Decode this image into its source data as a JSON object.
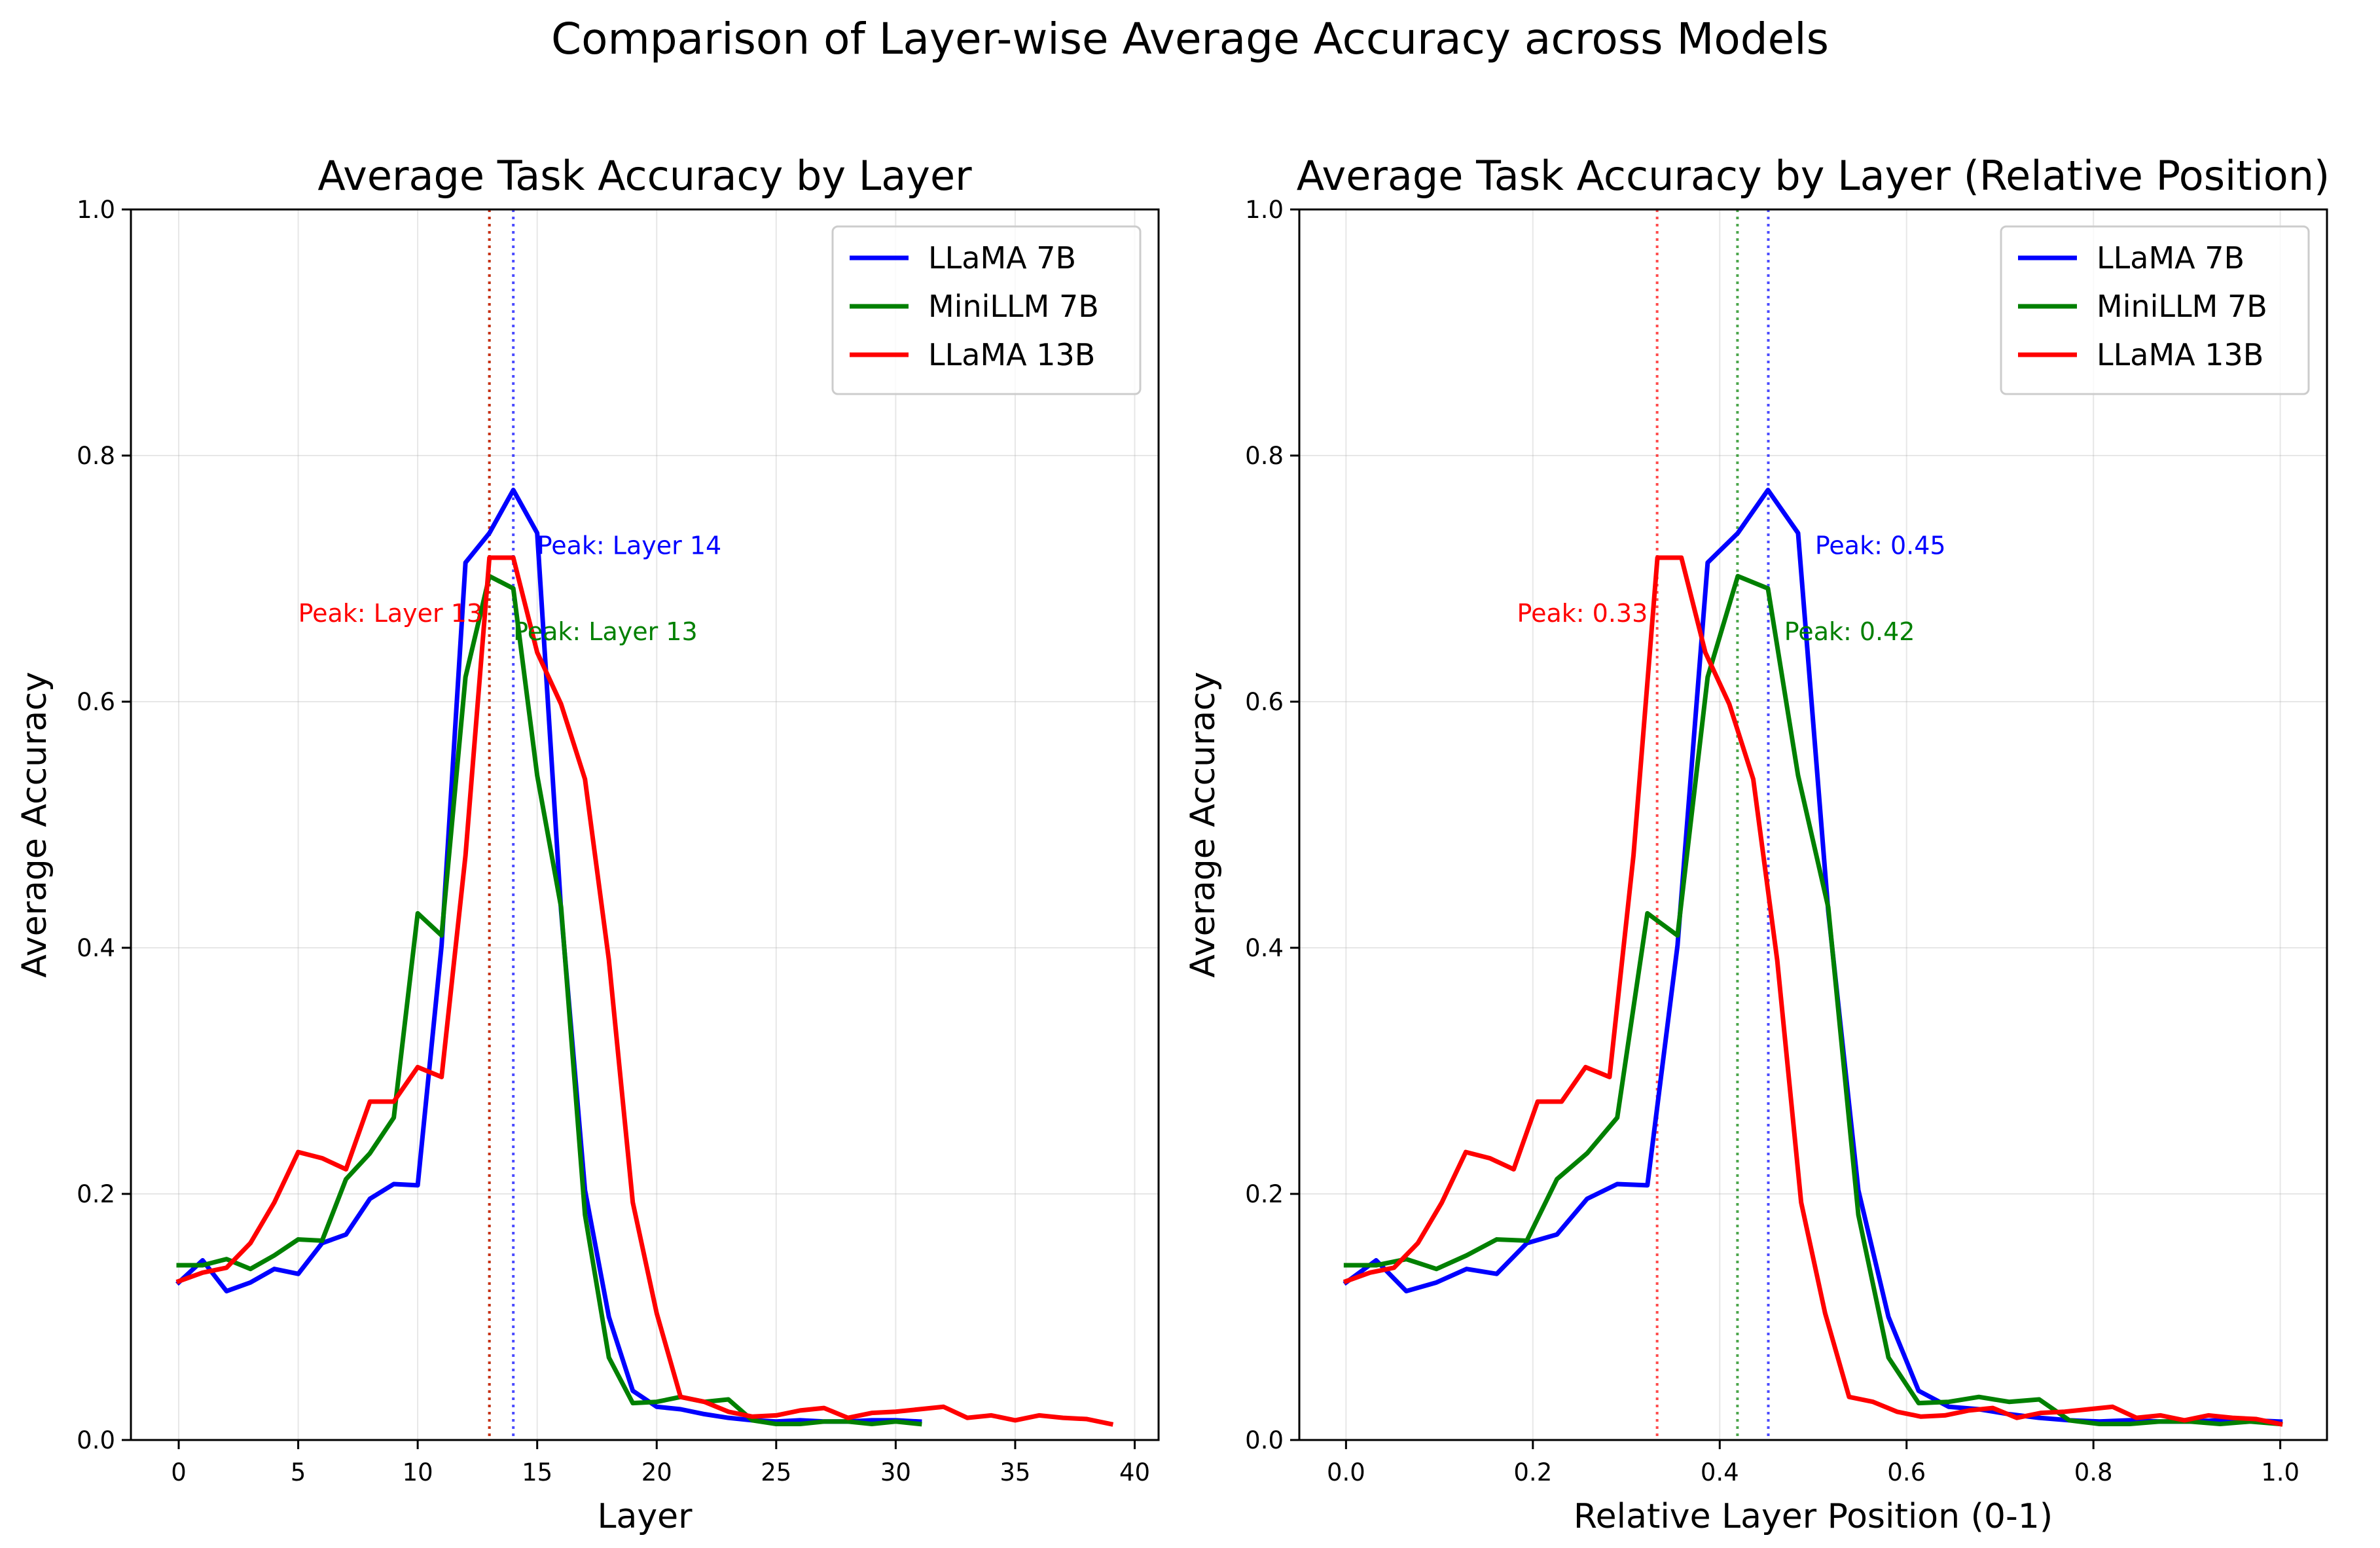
{
  "figure": {
    "suptitle": "Comparison of Layer-wise Average Accuracy across Models"
  },
  "colors": {
    "LLaMA 7B": "#0000ff",
    "MiniLLM 7B": "#008000",
    "LLaMA 13B": "#ff0000"
  },
  "chart_data": [
    {
      "type": "line",
      "title": "Average Task Accuracy by Layer",
      "xlabel": "Layer",
      "ylabel": "Average Accuracy",
      "xlim": [
        -2,
        41
      ],
      "ylim": [
        0,
        1
      ],
      "xticks": [
        0,
        5,
        10,
        15,
        20,
        25,
        30,
        35,
        40
      ],
      "xtick_labels": [
        "0",
        "5",
        "10",
        "15",
        "20",
        "25",
        "30",
        "35",
        "40"
      ],
      "yticks": [
        0,
        0.2,
        0.4,
        0.6,
        0.8,
        1.0
      ],
      "ytick_labels": [
        "0.0",
        "0.2",
        "0.4",
        "0.6",
        "0.8",
        "1.0"
      ],
      "grid": true,
      "legend": "upper-right",
      "series": [
        {
          "name": "LLaMA 7B",
          "x": [
            0,
            1,
            2,
            3,
            4,
            5,
            6,
            7,
            8,
            9,
            10,
            11,
            12,
            13,
            14,
            15,
            16,
            17,
            18,
            19,
            20,
            21,
            22,
            23,
            24,
            25,
            26,
            27,
            28,
            29,
            30,
            31
          ],
          "values": [
            0.128,
            0.146,
            0.121,
            0.128,
            0.139,
            0.135,
            0.16,
            0.167,
            0.196,
            0.208,
            0.207,
            0.402,
            0.713,
            0.737,
            0.772,
            0.737,
            0.43,
            0.203,
            0.1,
            0.04,
            0.027,
            0.025,
            0.021,
            0.018,
            0.016,
            0.015,
            0.016,
            0.015,
            0.015,
            0.016,
            0.016,
            0.015
          ]
        },
        {
          "name": "MiniLLM 7B",
          "x": [
            0,
            1,
            2,
            3,
            4,
            5,
            6,
            7,
            8,
            9,
            10,
            11,
            12,
            13,
            14,
            15,
            16,
            17,
            18,
            19,
            20,
            21,
            22,
            23,
            24,
            25,
            26,
            27,
            28,
            29,
            30,
            31
          ],
          "values": [
            0.142,
            0.142,
            0.147,
            0.139,
            0.15,
            0.163,
            0.162,
            0.212,
            0.233,
            0.262,
            0.428,
            0.41,
            0.62,
            0.702,
            0.692,
            0.54,
            0.433,
            0.183,
            0.067,
            0.03,
            0.031,
            0.035,
            0.031,
            0.033,
            0.016,
            0.013,
            0.013,
            0.015,
            0.015,
            0.013,
            0.015,
            0.013
          ]
        },
        {
          "name": "LLaMA 13B",
          "x": [
            0,
            1,
            2,
            3,
            4,
            5,
            6,
            7,
            8,
            9,
            10,
            11,
            12,
            13,
            14,
            15,
            16,
            17,
            18,
            19,
            20,
            21,
            22,
            23,
            24,
            25,
            26,
            27,
            28,
            29,
            30,
            31,
            32,
            33,
            34,
            35,
            36,
            37,
            38,
            39
          ],
          "values": [
            0.129,
            0.136,
            0.14,
            0.16,
            0.193,
            0.234,
            0.229,
            0.22,
            0.275,
            0.275,
            0.303,
            0.295,
            0.475,
            0.717,
            0.717,
            0.64,
            0.598,
            0.537,
            0.39,
            0.193,
            0.103,
            0.035,
            0.031,
            0.023,
            0.019,
            0.02,
            0.024,
            0.026,
            0.018,
            0.022,
            0.023,
            0.025,
            0.027,
            0.018,
            0.02,
            0.016,
            0.02,
            0.018,
            0.017,
            0.013
          ]
        }
      ],
      "peak_lines": [
        {
          "series": "LLaMA 7B",
          "x": 14
        },
        {
          "series": "MiniLLM 7B",
          "x": 13
        },
        {
          "series": "LLaMA 13B",
          "x": 13
        }
      ],
      "annotations": [
        {
          "text": "Peak: Layer 14",
          "series": "LLaMA 7B",
          "x": 15,
          "y": 0.72
        },
        {
          "text": "Peak: Layer 13",
          "series": "MiniLLM 7B",
          "x": 14,
          "y": 0.65
        },
        {
          "text": "Peak: Layer 13",
          "series": "LLaMA 13B",
          "x": 5,
          "y": 0.665
        }
      ]
    },
    {
      "type": "line",
      "title": "Average Task Accuracy by Layer (Relative Position)",
      "xlabel": "Relative Layer Position (0-1)",
      "ylabel": "Average Accuracy",
      "xlim": [
        -0.05,
        1.05
      ],
      "ylim": [
        0,
        1
      ],
      "xticks": [
        0,
        0.2,
        0.4,
        0.6,
        0.8,
        1.0
      ],
      "xtick_labels": [
        "0.0",
        "0.2",
        "0.4",
        "0.6",
        "0.8",
        "1.0"
      ],
      "yticks": [
        0,
        0.2,
        0.4,
        0.6,
        0.8,
        1.0
      ],
      "ytick_labels": [
        "0.0",
        "0.2",
        "0.4",
        "0.6",
        "0.8",
        "1.0"
      ],
      "grid": true,
      "legend": "upper-right",
      "x_note": "x = layer / (number of layers - 1)",
      "series": [
        {
          "name": "LLaMA 7B",
          "x_from_layers": 32,
          "values": [
            0.128,
            0.146,
            0.121,
            0.128,
            0.139,
            0.135,
            0.16,
            0.167,
            0.196,
            0.208,
            0.207,
            0.402,
            0.713,
            0.737,
            0.772,
            0.737,
            0.43,
            0.203,
            0.1,
            0.04,
            0.027,
            0.025,
            0.021,
            0.018,
            0.016,
            0.015,
            0.016,
            0.015,
            0.015,
            0.016,
            0.016,
            0.015
          ]
        },
        {
          "name": "MiniLLM 7B",
          "x_from_layers": 32,
          "values": [
            0.142,
            0.142,
            0.147,
            0.139,
            0.15,
            0.163,
            0.162,
            0.212,
            0.233,
            0.262,
            0.428,
            0.41,
            0.62,
            0.702,
            0.692,
            0.54,
            0.433,
            0.183,
            0.067,
            0.03,
            0.031,
            0.035,
            0.031,
            0.033,
            0.016,
            0.013,
            0.013,
            0.015,
            0.015,
            0.013,
            0.015,
            0.013
          ]
        },
        {
          "name": "LLaMA 13B",
          "x_from_layers": 40,
          "values": [
            0.129,
            0.136,
            0.14,
            0.16,
            0.193,
            0.234,
            0.229,
            0.22,
            0.275,
            0.275,
            0.303,
            0.295,
            0.475,
            0.717,
            0.717,
            0.64,
            0.598,
            0.537,
            0.39,
            0.193,
            0.103,
            0.035,
            0.031,
            0.023,
            0.019,
            0.02,
            0.024,
            0.026,
            0.018,
            0.022,
            0.023,
            0.025,
            0.027,
            0.018,
            0.02,
            0.016,
            0.02,
            0.018,
            0.017,
            0.013
          ]
        }
      ],
      "peak_lines": [
        {
          "series": "LLaMA 7B",
          "x": 0.452
        },
        {
          "series": "MiniLLM 7B",
          "x": 0.419
        },
        {
          "series": "LLaMA 13B",
          "x": 0.333
        }
      ],
      "annotations": [
        {
          "text": "Peak: 0.45",
          "series": "LLaMA 7B",
          "x": 0.502,
          "y": 0.72
        },
        {
          "text": "Peak: 0.42",
          "series": "MiniLLM 7B",
          "x": 0.469,
          "y": 0.65
        },
        {
          "text": "Peak: 0.33",
          "series": "LLaMA 13B",
          "x": 0.183,
          "y": 0.665
        }
      ]
    }
  ]
}
